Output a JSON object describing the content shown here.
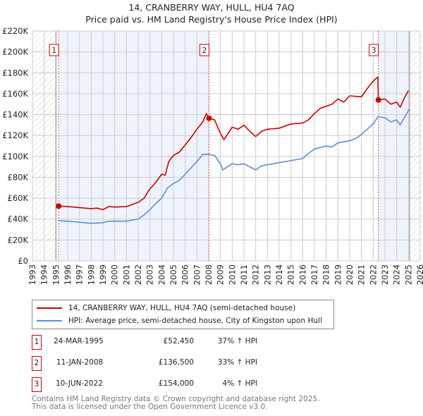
{
  "title": {
    "line1": "14, CRANBERRY WAY, HULL, HU4 7AQ",
    "line2": "Price paid vs. HM Land Registry's House Price Index (HPI)"
  },
  "legend": {
    "price_label": "14, CRANBERRY WAY, HULL, HU4 7AQ (semi-detached house)",
    "hpi_label": "HPI: Average price, semi-detached house, City of Kingston upon Hull"
  },
  "transactions": [
    {
      "num": "1",
      "date": "24-MAR-1995",
      "price": "£52,450",
      "hpi": "37% ↑ HPI"
    },
    {
      "num": "2",
      "date": "11-JAN-2008",
      "price": "£136,500",
      "hpi": "33% ↑ HPI"
    },
    {
      "num": "3",
      "date": "10-JUN-2022",
      "price": "£154,000",
      "hpi": "4% ↑ HPI"
    }
  ],
  "footer": {
    "line1": "Contains HM Land Registry data © Crown copyright and database right 2025.",
    "line2": "This data is licensed under the Open Government Licence v3.0."
  },
  "colors": {
    "price": "#cc0000",
    "hpi": "#5b8fd4",
    "band": "#eef3fc"
  },
  "chart_data": {
    "type": "line",
    "xlim": [
      1993,
      2026
    ],
    "ylim": [
      0,
      220000
    ],
    "grid": true,
    "legend_placement": "below",
    "x_ticks": [
      "1993",
      "1994",
      "1995",
      "1996",
      "1997",
      "1998",
      "1999",
      "2000",
      "2001",
      "2002",
      "2003",
      "2004",
      "2005",
      "2006",
      "2007",
      "2008",
      "2009",
      "2010",
      "2011",
      "2012",
      "2013",
      "2014",
      "2015",
      "2016",
      "2017",
      "2018",
      "2019",
      "2020",
      "2021",
      "2022",
      "2023",
      "2024",
      "2025",
      "2026"
    ],
    "y_ticks": [
      {
        "v": 0,
        "label": "£0"
      },
      {
        "v": 20000,
        "label": "£20K"
      },
      {
        "v": 40000,
        "label": "£40K"
      },
      {
        "v": 60000,
        "label": "£60K"
      },
      {
        "v": 80000,
        "label": "£80K"
      },
      {
        "v": 100000,
        "label": "£100K"
      },
      {
        "v": 120000,
        "label": "£120K"
      },
      {
        "v": 140000,
        "label": "£140K"
      },
      {
        "v": 160000,
        "label": "£160K"
      },
      {
        "v": 180000,
        "label": "£180K"
      },
      {
        "v": 200000,
        "label": "£200K"
      },
      {
        "v": 220000,
        "label": "£220K"
      }
    ],
    "data_range": [
      1995.0,
      2025.1
    ],
    "sales": [
      {
        "label": "1",
        "x": 1995.23,
        "y": 52450
      },
      {
        "label": "2",
        "x": 2008.03,
        "y": 136500
      },
      {
        "label": "3",
        "x": 2022.44,
        "y": 154000
      }
    ],
    "series": [
      {
        "name": "price_paid",
        "points": [
          [
            1995.23,
            52450
          ],
          [
            1996,
            52000
          ],
          [
            1997,
            51000
          ],
          [
            1998,
            50000
          ],
          [
            1998.5,
            50500
          ],
          [
            1999,
            49000
          ],
          [
            1999.5,
            52000
          ],
          [
            2000,
            51500
          ],
          [
            2001,
            52000
          ],
          [
            2001.5,
            54000
          ],
          [
            2002,
            56000
          ],
          [
            2002.5,
            60000
          ],
          [
            2003,
            69000
          ],
          [
            2003.5,
            75000
          ],
          [
            2004,
            83000
          ],
          [
            2004.3,
            82000
          ],
          [
            2004.6,
            95000
          ],
          [
            2005,
            101000
          ],
          [
            2005.5,
            104000
          ],
          [
            2006,
            111000
          ],
          [
            2006.5,
            118000
          ],
          [
            2007,
            126000
          ],
          [
            2007.5,
            133000
          ],
          [
            2007.8,
            141000
          ],
          [
            2008.03,
            136500
          ],
          [
            2008.5,
            135000
          ],
          [
            2009,
            122000
          ],
          [
            2009.3,
            116000
          ],
          [
            2010,
            128000
          ],
          [
            2010.5,
            126000
          ],
          [
            2011,
            130000
          ],
          [
            2011.5,
            124000
          ],
          [
            2012,
            119000
          ],
          [
            2012.5,
            124000
          ],
          [
            2013,
            126000
          ],
          [
            2014,
            127000
          ],
          [
            2015,
            131000
          ],
          [
            2016,
            132000
          ],
          [
            2016.5,
            135000
          ],
          [
            2017,
            141000
          ],
          [
            2017.5,
            146000
          ],
          [
            2018,
            148000
          ],
          [
            2018.5,
            150000
          ],
          [
            2019,
            155000
          ],
          [
            2019.5,
            152000
          ],
          [
            2020,
            158000
          ],
          [
            2021,
            157000
          ],
          [
            2021.5,
            165000
          ],
          [
            2022,
            172000
          ],
          [
            2022.4,
            176000
          ],
          [
            2022.44,
            154000
          ],
          [
            2023,
            155000
          ],
          [
            2023.5,
            150000
          ],
          [
            2024,
            152000
          ],
          [
            2024.3,
            147000
          ],
          [
            2024.7,
            157000
          ],
          [
            2025,
            163000
          ]
        ]
      },
      {
        "name": "hpi",
        "points": [
          [
            1995.2,
            38500
          ],
          [
            1996,
            38000
          ],
          [
            1997,
            37000
          ],
          [
            1998,
            36000
          ],
          [
            1999,
            36500
          ],
          [
            1999.5,
            38000
          ],
          [
            2000,
            38000
          ],
          [
            2001,
            38000
          ],
          [
            2001.5,
            39000
          ],
          [
            2002,
            40000
          ],
          [
            2002.5,
            44000
          ],
          [
            2003,
            49000
          ],
          [
            2003.5,
            55000
          ],
          [
            2004,
            60000
          ],
          [
            2004.5,
            70000
          ],
          [
            2005,
            74000
          ],
          [
            2005.5,
            77000
          ],
          [
            2006,
            83000
          ],
          [
            2006.5,
            89000
          ],
          [
            2007,
            95000
          ],
          [
            2007.5,
            102000
          ],
          [
            2008,
            102000
          ],
          [
            2008.5,
            101000
          ],
          [
            2009,
            93000
          ],
          [
            2009.2,
            87000
          ],
          [
            2010,
            93000
          ],
          [
            2010.5,
            92000
          ],
          [
            2011,
            93000
          ],
          [
            2011.5,
            90000
          ],
          [
            2012,
            87000
          ],
          [
            2012.5,
            91000
          ],
          [
            2013,
            92000
          ],
          [
            2014,
            94000
          ],
          [
            2015,
            96000
          ],
          [
            2016,
            98000
          ],
          [
            2016.5,
            103000
          ],
          [
            2017,
            107000
          ],
          [
            2018,
            110000
          ],
          [
            2018.5,
            109000
          ],
          [
            2019,
            113000
          ],
          [
            2020,
            115000
          ],
          [
            2020.5,
            117000
          ],
          [
            2021,
            121000
          ],
          [
            2022,
            131000
          ],
          [
            2022.4,
            138000
          ],
          [
            2023,
            137000
          ],
          [
            2023.5,
            133000
          ],
          [
            2024,
            135000
          ],
          [
            2024.3,
            130000
          ],
          [
            2025,
            144000
          ],
          [
            2025.1,
            145000
          ]
        ]
      }
    ]
  }
}
